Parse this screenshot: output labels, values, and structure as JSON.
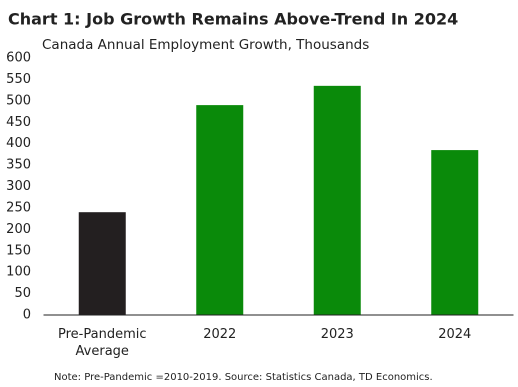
{
  "chart_data": {
    "type": "bar",
    "title": "Chart 1: Job Growth Remains Above-Trend In 2024",
    "subtitle": "Canada Annual Employment Growth, Thousands",
    "categories": [
      "Pre-Pandemic Average",
      "2022",
      "2023",
      "2024"
    ],
    "values": [
      240,
      490,
      535,
      385
    ],
    "colors": [
      "#231f20",
      "#0a8a0a",
      "#0a8a0a",
      "#0a8a0a"
    ],
    "ylim": [
      0,
      600
    ],
    "yticks": [
      0,
      50,
      100,
      150,
      200,
      250,
      300,
      350,
      400,
      450,
      500,
      550,
      600
    ],
    "grid": false,
    "note": "Note: Pre-Pandemic  =2010-2019.  Source: Statistics Canada, TD Economics."
  }
}
